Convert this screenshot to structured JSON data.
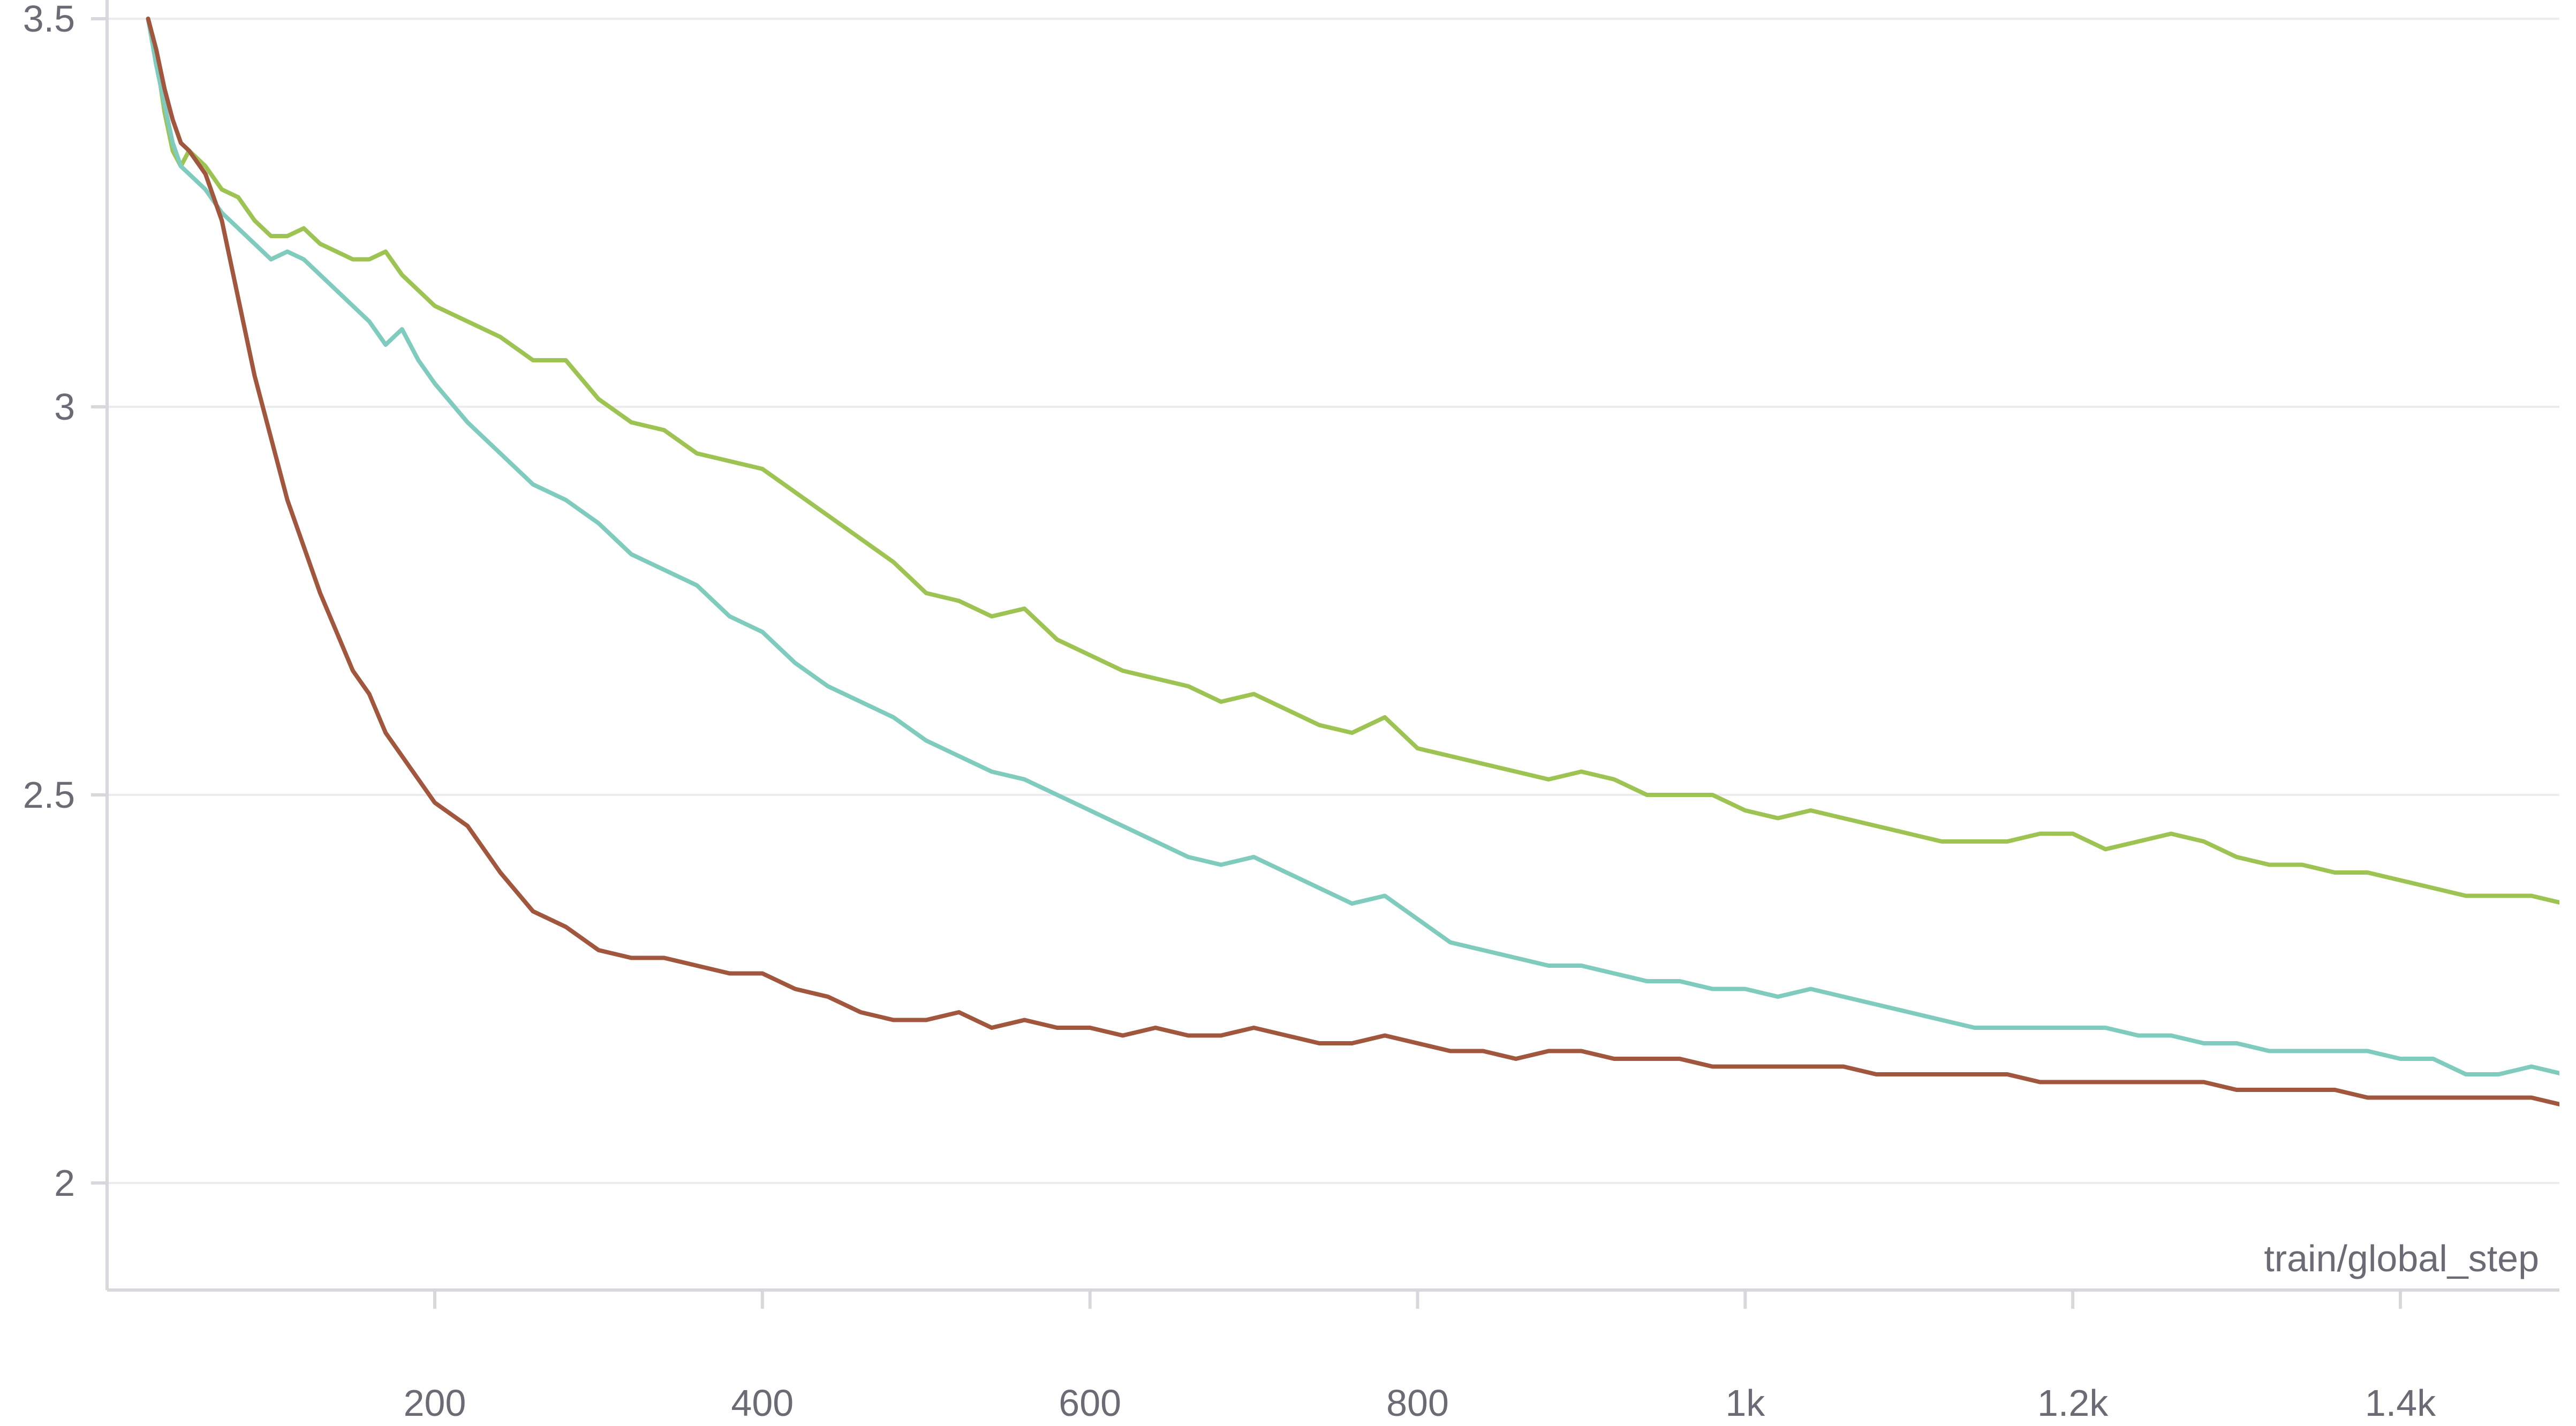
{
  "chart_data": {
    "type": "line",
    "title": "",
    "xlabel": "train/global_step",
    "ylabel": "",
    "xlim": [
      0,
      1500
    ],
    "ylim": [
      1.8,
      3.5
    ],
    "x_ticks": [
      200,
      400,
      600,
      800,
      1000,
      1200,
      1400
    ],
    "x_tick_labels": [
      "200",
      "400",
      "600",
      "800",
      "1k",
      "1.2k",
      "1.4k"
    ],
    "y_ticks": [
      2,
      2.5,
      3,
      3.5
    ],
    "y_tick_labels": [
      "2",
      "2.5",
      "3",
      "3.5"
    ],
    "grid": true,
    "legend": "none",
    "series": [
      {
        "color": "#9dc452",
        "x": [
          25,
          30,
          35,
          40,
          45,
          50,
          60,
          70,
          80,
          90,
          100,
          110,
          120,
          130,
          140,
          150,
          160,
          170,
          180,
          190,
          200,
          220,
          240,
          260,
          280,
          300,
          320,
          340,
          360,
          380,
          400,
          420,
          440,
          460,
          480,
          500,
          520,
          540,
          560,
          580,
          600,
          620,
          640,
          660,
          680,
          700,
          720,
          740,
          760,
          780,
          800,
          820,
          840,
          860,
          880,
          900,
          920,
          940,
          960,
          980,
          1000,
          1020,
          1040,
          1060,
          1080,
          1100,
          1120,
          1140,
          1160,
          1180,
          1200,
          1220,
          1240,
          1260,
          1280,
          1300,
          1320,
          1340,
          1360,
          1380,
          1400,
          1420,
          1440,
          1460,
          1480,
          1500
        ],
        "y": [
          3.5,
          3.45,
          3.38,
          3.33,
          3.31,
          3.33,
          3.31,
          3.28,
          3.27,
          3.24,
          3.22,
          3.22,
          3.23,
          3.21,
          3.2,
          3.19,
          3.19,
          3.2,
          3.17,
          3.15,
          3.13,
          3.11,
          3.09,
          3.06,
          3.06,
          3.01,
          2.98,
          2.97,
          2.94,
          2.93,
          2.92,
          2.89,
          2.86,
          2.83,
          2.8,
          2.76,
          2.75,
          2.73,
          2.74,
          2.7,
          2.68,
          2.66,
          2.65,
          2.64,
          2.62,
          2.63,
          2.61,
          2.59,
          2.58,
          2.6,
          2.56,
          2.55,
          2.54,
          2.53,
          2.52,
          2.53,
          2.52,
          2.5,
          2.5,
          2.5,
          2.48,
          2.47,
          2.48,
          2.47,
          2.46,
          2.45,
          2.44,
          2.44,
          2.44,
          2.45,
          2.45,
          2.43,
          2.44,
          2.45,
          2.44,
          2.42,
          2.41,
          2.41,
          2.4,
          2.4,
          2.39,
          2.38,
          2.37,
          2.37,
          2.37,
          2.36
        ]
      },
      {
        "color": "#7fccbf",
        "x": [
          25,
          30,
          35,
          40,
          45,
          50,
          60,
          70,
          80,
          90,
          100,
          110,
          120,
          130,
          140,
          150,
          160,
          170,
          180,
          190,
          200,
          220,
          240,
          260,
          280,
          300,
          320,
          340,
          360,
          380,
          400,
          420,
          440,
          460,
          480,
          500,
          520,
          540,
          560,
          580,
          600,
          620,
          640,
          660,
          680,
          700,
          720,
          740,
          760,
          780,
          800,
          820,
          840,
          860,
          880,
          900,
          920,
          940,
          960,
          980,
          1000,
          1020,
          1040,
          1060,
          1080,
          1100,
          1120,
          1140,
          1160,
          1180,
          1200,
          1220,
          1240,
          1260,
          1280,
          1300,
          1320,
          1340,
          1360,
          1380,
          1400,
          1420,
          1440,
          1460,
          1480,
          1500
        ],
        "y": [
          3.5,
          3.44,
          3.39,
          3.34,
          3.31,
          3.3,
          3.28,
          3.25,
          3.23,
          3.21,
          3.19,
          3.2,
          3.19,
          3.17,
          3.15,
          3.13,
          3.11,
          3.08,
          3.1,
          3.06,
          3.03,
          2.98,
          2.94,
          2.9,
          2.88,
          2.85,
          2.81,
          2.79,
          2.77,
          2.73,
          2.71,
          2.67,
          2.64,
          2.62,
          2.6,
          2.57,
          2.55,
          2.53,
          2.52,
          2.5,
          2.48,
          2.46,
          2.44,
          2.42,
          2.41,
          2.42,
          2.4,
          2.38,
          2.36,
          2.37,
          2.34,
          2.31,
          2.3,
          2.29,
          2.28,
          2.28,
          2.27,
          2.26,
          2.26,
          2.25,
          2.25,
          2.24,
          2.25,
          2.24,
          2.23,
          2.22,
          2.21,
          2.2,
          2.2,
          2.2,
          2.2,
          2.2,
          2.19,
          2.19,
          2.18,
          2.18,
          2.17,
          2.17,
          2.17,
          2.17,
          2.16,
          2.16,
          2.14,
          2.14,
          2.15,
          2.14
        ]
      },
      {
        "color": "#a0573e",
        "x": [
          25,
          30,
          35,
          40,
          45,
          50,
          60,
          70,
          80,
          90,
          100,
          110,
          120,
          130,
          140,
          150,
          160,
          170,
          180,
          190,
          200,
          220,
          240,
          260,
          280,
          300,
          320,
          340,
          360,
          380,
          400,
          420,
          440,
          460,
          480,
          500,
          520,
          540,
          560,
          580,
          600,
          620,
          640,
          660,
          680,
          700,
          720,
          740,
          760,
          780,
          800,
          820,
          840,
          860,
          880,
          900,
          920,
          940,
          960,
          980,
          1000,
          1020,
          1040,
          1060,
          1080,
          1100,
          1120,
          1140,
          1160,
          1180,
          1200,
          1220,
          1240,
          1260,
          1280,
          1300,
          1320,
          1340,
          1360,
          1380,
          1400,
          1420,
          1440,
          1460,
          1480,
          1500
        ],
        "y": [
          3.5,
          3.46,
          3.41,
          3.37,
          3.34,
          3.33,
          3.3,
          3.24,
          3.14,
          3.04,
          2.96,
          2.88,
          2.82,
          2.76,
          2.71,
          2.66,
          2.63,
          2.58,
          2.55,
          2.52,
          2.49,
          2.46,
          2.4,
          2.35,
          2.33,
          2.3,
          2.29,
          2.29,
          2.28,
          2.27,
          2.27,
          2.25,
          2.24,
          2.22,
          2.21,
          2.21,
          2.22,
          2.2,
          2.21,
          2.2,
          2.2,
          2.19,
          2.2,
          2.19,
          2.19,
          2.2,
          2.19,
          2.18,
          2.18,
          2.19,
          2.18,
          2.17,
          2.17,
          2.16,
          2.17,
          2.17,
          2.16,
          2.16,
          2.16,
          2.15,
          2.15,
          2.15,
          2.15,
          2.15,
          2.14,
          2.14,
          2.14,
          2.14,
          2.14,
          2.13,
          2.13,
          2.13,
          2.13,
          2.13,
          2.13,
          2.12,
          2.12,
          2.12,
          2.12,
          2.11,
          2.11,
          2.11,
          2.11,
          2.11,
          2.11,
          2.1
        ]
      }
    ]
  }
}
